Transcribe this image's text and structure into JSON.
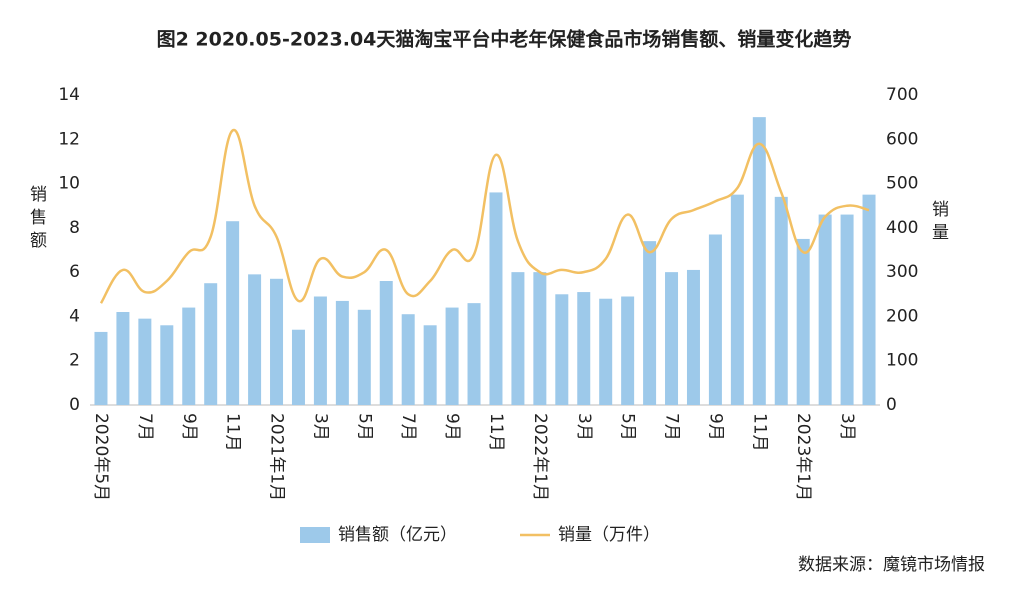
{
  "chart_data": {
    "type": "bar_line",
    "title": "图2 2020.05-2023.04天猫淘宝平台中老年保健食品市场销售额、销量变化趋势",
    "y_label": "销售额",
    "y2_label": "销量",
    "source": "数据来源：魔镜市场情报",
    "categories": [
      "2020年5月",
      null,
      "7月",
      null,
      "9月",
      null,
      "11月",
      null,
      "2021年1月",
      null,
      "3月",
      null,
      "5月",
      null,
      "7月",
      null,
      "9月",
      null,
      "11月",
      null,
      "2022年1月",
      null,
      "3月",
      null,
      "5月",
      null,
      "7月",
      null,
      "9月",
      null,
      "11月",
      null,
      "2023年1月",
      null,
      "3月",
      null
    ],
    "series": [
      {
        "name": "销售额（亿元）",
        "color": "#9dc9ea",
        "kind": "bar",
        "values": [
          3.3,
          4.2,
          3.9,
          3.6,
          4.4,
          5.5,
          8.3,
          5.9,
          5.7,
          3.4,
          4.9,
          4.7,
          4.3,
          5.6,
          4.1,
          3.6,
          4.4,
          4.6,
          9.6,
          6.0,
          6.0,
          5.0,
          5.1,
          4.8,
          4.9,
          7.4,
          6.0,
          6.1,
          7.7,
          9.5,
          13.0,
          9.4,
          7.5,
          8.6,
          8.6,
          9.5
        ]
      },
      {
        "name": "销量（万件）",
        "color": "#f2c063",
        "kind": "line",
        "axis": "y2",
        "values": [
          230,
          305,
          255,
          280,
          345,
          380,
          620,
          450,
          380,
          235,
          330,
          290,
          300,
          350,
          250,
          280,
          350,
          340,
          565,
          370,
          300,
          305,
          300,
          330,
          430,
          345,
          420,
          440,
          460,
          490,
          590,
          480,
          345,
          425,
          450,
          440
        ]
      }
    ],
    "ylim": [
      0,
      14
    ],
    "yticks": [
      0,
      2,
      4,
      6,
      8,
      10,
      12,
      14
    ],
    "y2lim": [
      0,
      700
    ],
    "y2ticks": [
      0,
      100,
      200,
      300,
      400,
      500,
      600,
      700
    ],
    "grid": false
  }
}
